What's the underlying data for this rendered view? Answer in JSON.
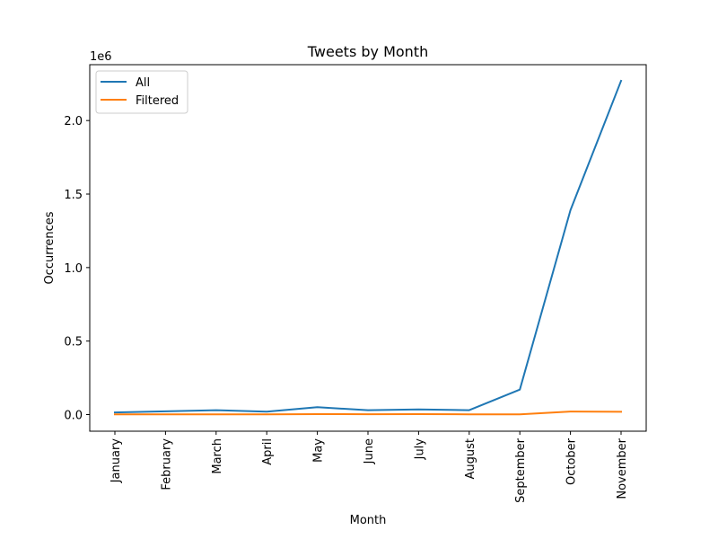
{
  "chart_data": {
    "type": "line",
    "title": "Tweets by Month",
    "xlabel": "Month",
    "ylabel": "Occurrences",
    "y_offset_label": "1e6",
    "categories": [
      "January",
      "February",
      "March",
      "April",
      "May",
      "June",
      "July",
      "August",
      "September",
      "October",
      "November"
    ],
    "y_ticks": [
      0.0,
      0.5,
      1.0,
      1.5,
      2.0
    ],
    "y_tick_labels": [
      "0.0",
      "0.5",
      "1.0",
      "1.5",
      "2.0"
    ],
    "ylim": [
      -0.113,
      2.38
    ],
    "y_scale": 1000000,
    "grid": false,
    "legend_position": "top-left",
    "series": [
      {
        "name": "All",
        "color": "#1f77b4",
        "values": [
          15000,
          22000,
          30000,
          20000,
          50000,
          30000,
          35000,
          30000,
          170000,
          1390000,
          2270000
        ]
      },
      {
        "name": "Filtered",
        "color": "#ff7f0e",
        "values": [
          1000,
          1500,
          2000,
          1500,
          3000,
          2500,
          3000,
          2000,
          2000,
          21000,
          19000
        ]
      }
    ]
  }
}
